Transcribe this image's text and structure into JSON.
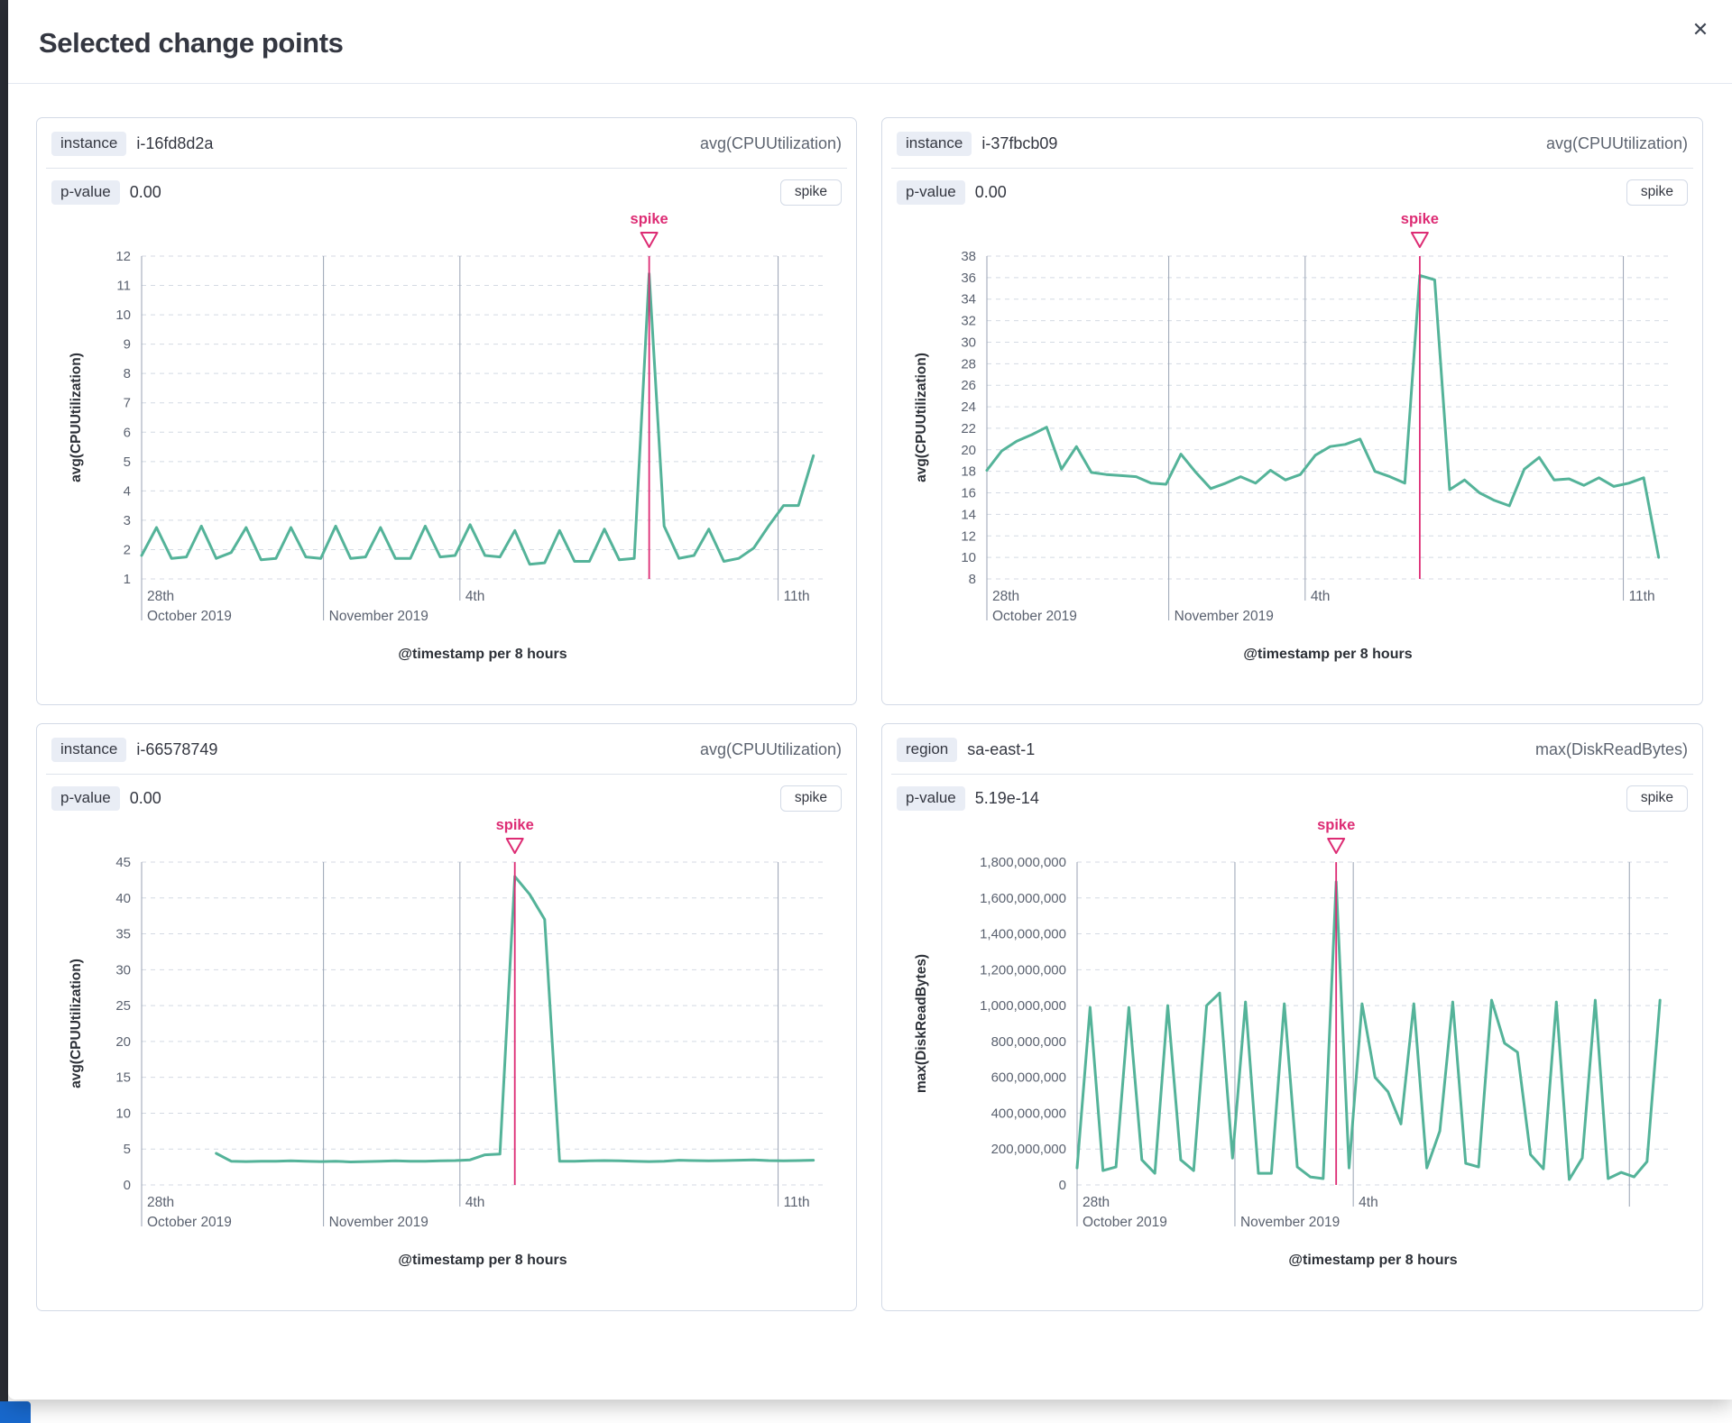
{
  "modal": {
    "title": "Selected change points",
    "close_glyph": "✕"
  },
  "colors": {
    "line": "#54b399",
    "annotation": "#dd2c74",
    "separator": "#98a2b3",
    "grid": "#d4dae3",
    "tick_text": "#5b6270",
    "axis_title_text": "#2c3037",
    "page_strip": "#2b2d35",
    "page_blue_chip": "#1868cc"
  },
  "panels": [
    {
      "field_badge": "instance",
      "field_value": "i-16fd8d2a",
      "metric": "avg(CPUUtilization)",
      "pvalue_badge": "p-value",
      "pvalue": "0.00",
      "change_type": "spike"
    },
    {
      "field_badge": "instance",
      "field_value": "i-37fbcb09",
      "metric": "avg(CPUUtilization)",
      "pvalue_badge": "p-value",
      "pvalue": "0.00",
      "change_type": "spike"
    },
    {
      "field_badge": "instance",
      "field_value": "i-66578749",
      "metric": "avg(CPUUtilization)",
      "pvalue_badge": "p-value",
      "pvalue": "0.00",
      "change_type": "spike"
    },
    {
      "field_badge": "region",
      "field_value": "sa-east-1",
      "metric": "max(DiskReadBytes)",
      "pvalue_badge": "p-value",
      "pvalue": "5.19e-14",
      "change_type": "spike"
    }
  ],
  "chart_data": [
    {
      "type": "line",
      "title": "i-16fd8d2a avg(CPUUtilization)",
      "xlabel": "@timestamp per 8 hours",
      "ylabel": "avg(CPUUtilization)",
      "ylim": [
        1,
        12
      ],
      "y_ticks": [
        1,
        2,
        3,
        4,
        5,
        6,
        7,
        8,
        9,
        10,
        11,
        12
      ],
      "y_tick_labels": [
        "1",
        "2",
        "3",
        "4",
        "5",
        "6",
        "7",
        "8",
        "9",
        "10",
        "11",
        "12"
      ],
      "x_range": "2019-10-28 to 2019-11-12",
      "day_labels": [
        {
          "t": "28th",
          "f": 0
        },
        {
          "t": "4th",
          "f": 0.4667
        },
        {
          "t": "11th",
          "f": 0.9333
        }
      ],
      "month_labels": [
        {
          "t": "October 2019",
          "f": 0
        },
        {
          "t": "November 2019",
          "f": 0.2667
        }
      ],
      "separators": [
        {
          "f": 0,
          "deep": true
        },
        {
          "f": 0.2667,
          "deep": true
        },
        {
          "f": 0.4667,
          "deep": false
        },
        {
          "f": 0.9333,
          "deep": false
        }
      ],
      "annotation": {
        "label": "spike",
        "index": 34
      },
      "values": [
        1.8,
        2.75,
        1.7,
        1.75,
        2.8,
        1.7,
        1.9,
        2.75,
        1.65,
        1.7,
        2.75,
        1.75,
        1.7,
        2.8,
        1.7,
        1.75,
        2.75,
        1.7,
        1.7,
        2.8,
        1.75,
        1.8,
        2.85,
        1.8,
        1.75,
        2.65,
        1.5,
        1.55,
        2.65,
        1.6,
        1.6,
        2.7,
        1.65,
        1.7,
        11.4,
        2.8,
        1.7,
        1.8,
        2.7,
        1.6,
        1.7,
        2.05,
        2.8,
        3.5,
        3.5,
        5.2
      ]
    },
    {
      "type": "line",
      "title": "i-37fbcb09 avg(CPUUtilization)",
      "xlabel": "@timestamp per 8 hours",
      "ylabel": "avg(CPUUtilization)",
      "ylim": [
        8,
        38
      ],
      "y_ticks": [
        8,
        10,
        12,
        14,
        16,
        18,
        20,
        22,
        24,
        26,
        28,
        30,
        32,
        34,
        36,
        38
      ],
      "y_tick_labels": [
        "8",
        "10",
        "12",
        "14",
        "16",
        "18",
        "20",
        "22",
        "24",
        "26",
        "28",
        "30",
        "32",
        "34",
        "36",
        "38"
      ],
      "x_range": "2019-10-28 to 2019-11-12",
      "day_labels": [
        {
          "t": "28th",
          "f": 0
        },
        {
          "t": "4th",
          "f": 0.4667
        },
        {
          "t": "11th",
          "f": 0.9333
        }
      ],
      "month_labels": [
        {
          "t": "October 2019",
          "f": 0
        },
        {
          "t": "November 2019",
          "f": 0.2667
        }
      ],
      "separators": [
        {
          "f": 0,
          "deep": true
        },
        {
          "f": 0.2667,
          "deep": true
        },
        {
          "f": 0.4667,
          "deep": false
        },
        {
          "f": 0.9333,
          "deep": false
        }
      ],
      "annotation": {
        "label": "spike",
        "index": 29
      },
      "values": [
        18.1,
        19.9,
        20.8,
        21.4,
        22.1,
        18.2,
        20.3,
        17.9,
        17.7,
        17.6,
        17.5,
        16.9,
        16.8,
        19.6,
        17.9,
        16.4,
        16.9,
        17.5,
        16.9,
        18.1,
        17.2,
        17.7,
        19.5,
        20.3,
        20.5,
        21.0,
        18.0,
        17.5,
        16.9,
        36.2,
        35.8,
        16.3,
        17.2,
        16.0,
        15.3,
        14.8,
        18.2,
        19.3,
        17.2,
        17.3,
        16.7,
        17.4,
        16.6,
        16.9,
        17.4,
        10.0
      ]
    },
    {
      "type": "line",
      "title": "i-66578749 avg(CPUUtilization)",
      "xlabel": "@timestamp per 8 hours",
      "ylabel": "avg(CPUUtilization)",
      "ylim": [
        0,
        45
      ],
      "y_ticks": [
        0,
        5,
        10,
        15,
        20,
        25,
        30,
        35,
        40,
        45
      ],
      "y_tick_labels": [
        "0",
        "5",
        "10",
        "15",
        "20",
        "25",
        "30",
        "35",
        "40",
        "45"
      ],
      "x_range": "2019-10-28 to 2019-11-12",
      "day_labels": [
        {
          "t": "28th",
          "f": 0
        },
        {
          "t": "4th",
          "f": 0.4667
        },
        {
          "t": "11th",
          "f": 0.9333
        }
      ],
      "month_labels": [
        {
          "t": "October 2019",
          "f": 0
        },
        {
          "t": "November 2019",
          "f": 0.2667
        }
      ],
      "separators": [
        {
          "f": 0,
          "deep": true
        },
        {
          "f": 0.2667,
          "deep": true
        },
        {
          "f": 0.4667,
          "deep": false
        },
        {
          "f": 0.9333,
          "deep": false
        }
      ],
      "annotation": {
        "label": "spike",
        "index": 25
      },
      "values": [
        null,
        null,
        null,
        null,
        null,
        4.4,
        3.3,
        3.25,
        3.3,
        3.3,
        3.35,
        3.3,
        3.25,
        3.3,
        3.2,
        3.25,
        3.3,
        3.35,
        3.3,
        3.3,
        3.35,
        3.4,
        3.5,
        4.2,
        4.3,
        43.0,
        40.5,
        37.0,
        3.3,
        3.3,
        3.35,
        3.4,
        3.35,
        3.3,
        3.25,
        3.3,
        3.45,
        3.4,
        3.35,
        3.4,
        3.45,
        3.5,
        3.4,
        3.35,
        3.4,
        3.45
      ]
    },
    {
      "type": "line",
      "title": "sa-east-1 max(DiskReadBytes)",
      "xlabel": "@timestamp per 8 hours",
      "ylabel": "max(DiskReadBytes)",
      "ylim": [
        0,
        1800000000
      ],
      "y_ticks": [
        0,
        200000000,
        400000000,
        600000000,
        800000000,
        1000000000,
        1200000000,
        1400000000,
        1600000000,
        1800000000
      ],
      "y_tick_labels": [
        "0",
        "200,000,000",
        "400,000,000",
        "600,000,000",
        "800,000,000",
        "1,000,000,000",
        "1,200,000,000",
        "1,400,000,000",
        "1,600,000,000",
        "1,800,000,000"
      ],
      "x_range": "2019-10-28 to 2019-11-12",
      "day_labels": [
        {
          "t": "28th",
          "f": 0
        },
        {
          "t": "4th",
          "f": 0.4667
        }
      ],
      "month_labels": [
        {
          "t": "October 2019",
          "f": 0
        },
        {
          "t": "November 2019",
          "f": 0.2667
        }
      ],
      "separators": [
        {
          "f": 0,
          "deep": true
        },
        {
          "f": 0.2667,
          "deep": true
        },
        {
          "f": 0.4667,
          "deep": false
        },
        {
          "f": 0.9333,
          "deep": false
        }
      ],
      "annotation": {
        "label": "spike",
        "index": 20
      },
      "values": [
        95000000,
        990000000,
        80000000,
        100000000,
        990000000,
        140000000,
        65000000,
        1000000000,
        140000000,
        80000000,
        1000000000,
        1070000000,
        150000000,
        1020000000,
        65000000,
        65000000,
        1010000000,
        100000000,
        45000000,
        35000000,
        1690000000,
        95000000,
        1010000000,
        600000000,
        520000000,
        340000000,
        1010000000,
        95000000,
        300000000,
        1020000000,
        120000000,
        100000000,
        1030000000,
        790000000,
        740000000,
        170000000,
        90000000,
        1020000000,
        30000000,
        150000000,
        1030000000,
        35000000,
        70000000,
        45000000,
        130000000,
        1030000000
      ]
    }
  ]
}
